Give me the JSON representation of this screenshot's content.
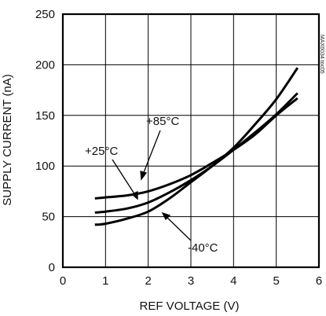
{
  "chart_data": {
    "type": "line",
    "title": "",
    "xlabel": "REF VOLTAGE (V)",
    "ylabel": "SUPPLY CURRENT (nA)",
    "xlim": [
      0,
      6
    ],
    "ylim": [
      0,
      250
    ],
    "xticks": [
      0,
      1,
      2,
      3,
      4,
      5,
      6
    ],
    "yticks": [
      0,
      50,
      100,
      150,
      200,
      250
    ],
    "grid": true,
    "legend": "none",
    "series": [
      {
        "name": "+85°C",
        "x": [
          0.75,
          1.0,
          1.5,
          2.0,
          2.5,
          3.0,
          3.5,
          4.0,
          4.5,
          5.0,
          5.5
        ],
        "y": [
          68,
          69,
          71,
          75,
          82,
          91,
          103,
          116,
          131,
          150,
          167
        ]
      },
      {
        "name": "+25°C",
        "x": [
          0.75,
          1.0,
          1.5,
          2.0,
          2.5,
          3.0,
          3.5,
          4.0,
          4.5,
          5.0,
          5.5
        ],
        "y": [
          54,
          55,
          58,
          64,
          74,
          86,
          100,
          116,
          133,
          151,
          172
        ]
      },
      {
        "name": "-40°C",
        "x": [
          0.75,
          1.0,
          1.5,
          2.0,
          2.5,
          3.0,
          3.5,
          4.0,
          4.5,
          5.0,
          5.5
        ],
        "y": [
          42,
          43,
          48,
          55,
          68,
          84,
          100,
          118,
          141,
          166,
          197
        ]
      }
    ],
    "annotations": [
      "+85°C",
      "+25°C",
      "-40°C"
    ],
    "side_code": "MAX6034 toc05",
    "line_color": "#000000"
  }
}
